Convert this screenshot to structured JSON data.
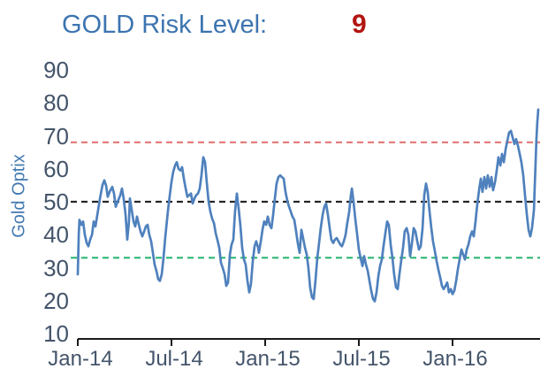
{
  "header": {
    "title": "GOLD Risk Level:",
    "value": "9"
  },
  "colors": {
    "title_blue": "#3c74b0",
    "value_red": "#b21511",
    "series_blue": "#4f81bd",
    "upper_threshold": "#e57e7e",
    "midline": "#262626",
    "lower_threshold": "#2db673",
    "axis": "#1a1a1a",
    "tick_text": "#44546a"
  },
  "chart_data": {
    "type": "line",
    "title": "GOLD Risk Level: 9",
    "xlabel": "",
    "ylabel": "Gold Optix",
    "x_unit": "months since Jan-2014 (0 = Jan-14)",
    "ylim": [
      10,
      90
    ],
    "xlim_months": [
      0,
      29.6
    ],
    "grid": false,
    "legend": "none",
    "yticks": [
      90,
      80,
      70,
      60,
      50,
      40,
      30,
      20,
      10
    ],
    "xticks": [
      {
        "m": 0,
        "label": "Jan-14"
      },
      {
        "m": 6,
        "label": "Jul-14"
      },
      {
        "m": 12,
        "label": "Jan-15"
      },
      {
        "m": 18,
        "label": "Jul-15"
      },
      {
        "m": 24,
        "label": "Jan-16"
      }
    ],
    "reference_lines": [
      {
        "name": "upper-threshold-line",
        "value": 68,
        "color": "#e57e7e",
        "style": "dashed"
      },
      {
        "name": "midline",
        "value": 50,
        "color": "#262626",
        "style": "dashed"
      },
      {
        "name": "lower-threshold-line",
        "value": 33,
        "color": "#2db673",
        "style": "dashed"
      }
    ],
    "series": [
      {
        "name": "Gold Optix",
        "color": "#4f81bd",
        "points": [
          [
            0,
            28
          ],
          [
            0.06,
            40
          ],
          [
            0.11,
            44.5
          ],
          [
            0.23,
            43
          ],
          [
            0.34,
            44
          ],
          [
            0.45,
            40
          ],
          [
            0.57,
            37.5
          ],
          [
            0.68,
            36.5
          ],
          [
            0.79,
            38.5
          ],
          [
            0.91,
            40
          ],
          [
            1.02,
            44
          ],
          [
            1.13,
            42.5
          ],
          [
            1.25,
            46
          ],
          [
            1.42,
            51
          ],
          [
            1.58,
            55
          ],
          [
            1.7,
            56.5
          ],
          [
            1.81,
            55
          ],
          [
            1.92,
            51.5
          ],
          [
            2.04,
            53
          ],
          [
            2.21,
            54.5
          ],
          [
            2.32,
            52.5
          ],
          [
            2.43,
            48.5
          ],
          [
            2.55,
            50
          ],
          [
            2.72,
            52
          ],
          [
            2.83,
            54
          ],
          [
            2.94,
            51
          ],
          [
            3.06,
            46
          ],
          [
            3.17,
            38.5
          ],
          [
            3.28,
            44
          ],
          [
            3.34,
            51
          ],
          [
            3.45,
            47.5
          ],
          [
            3.57,
            44
          ],
          [
            3.68,
            42.5
          ],
          [
            3.79,
            45.5
          ],
          [
            3.91,
            43
          ],
          [
            4.02,
            41
          ],
          [
            4.13,
            39.5
          ],
          [
            4.25,
            41
          ],
          [
            4.36,
            42.5
          ],
          [
            4.47,
            43
          ],
          [
            4.58,
            40
          ],
          [
            4.7,
            38
          ],
          [
            4.81,
            34.5
          ],
          [
            4.92,
            31
          ],
          [
            5.04,
            29
          ],
          [
            5.15,
            26.5
          ],
          [
            5.26,
            26
          ],
          [
            5.38,
            28
          ],
          [
            5.49,
            33
          ],
          [
            5.6,
            39
          ],
          [
            5.77,
            47
          ],
          [
            5.89,
            52
          ],
          [
            6,
            56
          ],
          [
            6.11,
            59
          ],
          [
            6.23,
            61
          ],
          [
            6.34,
            62
          ],
          [
            6.45,
            60
          ],
          [
            6.57,
            59.5
          ],
          [
            6.68,
            60.5
          ],
          [
            6.79,
            57
          ],
          [
            6.91,
            54
          ],
          [
            7.02,
            51.5
          ],
          [
            7.13,
            52
          ],
          [
            7.25,
            52.5
          ],
          [
            7.36,
            49.5
          ],
          [
            7.47,
            51
          ],
          [
            7.58,
            52
          ],
          [
            7.7,
            52.5
          ],
          [
            7.81,
            54
          ],
          [
            7.92,
            58
          ],
          [
            8.04,
            63.5
          ],
          [
            8.15,
            62
          ],
          [
            8.26,
            56
          ],
          [
            8.38,
            50
          ],
          [
            8.49,
            47
          ],
          [
            8.6,
            45
          ],
          [
            8.72,
            43.5
          ],
          [
            8.83,
            40.5
          ],
          [
            8.94,
            38.5
          ],
          [
            9.06,
            36
          ],
          [
            9.17,
            31.5
          ],
          [
            9.28,
            30
          ],
          [
            9.4,
            28
          ],
          [
            9.51,
            24.5
          ],
          [
            9.62,
            25.5
          ],
          [
            9.74,
            34
          ],
          [
            9.85,
            37
          ],
          [
            9.96,
            38.5
          ],
          [
            10.07,
            47
          ],
          [
            10.19,
            52.5
          ],
          [
            10.3,
            48
          ],
          [
            10.41,
            43
          ],
          [
            10.53,
            36
          ],
          [
            10.64,
            32.5
          ],
          [
            10.75,
            31
          ],
          [
            10.87,
            26
          ],
          [
            10.98,
            22.5
          ],
          [
            11.09,
            25
          ],
          [
            11.21,
            32
          ],
          [
            11.32,
            36.5
          ],
          [
            11.43,
            38
          ],
          [
            11.55,
            36
          ],
          [
            11.6,
            34.5
          ],
          [
            11.72,
            38
          ],
          [
            11.83,
            41.5
          ],
          [
            11.94,
            44
          ],
          [
            12.06,
            43
          ],
          [
            12.17,
            45.5
          ],
          [
            12.28,
            43
          ],
          [
            12.4,
            42
          ],
          [
            12.51,
            46
          ],
          [
            12.62,
            51
          ],
          [
            12.73,
            55.5
          ],
          [
            12.85,
            57.5
          ],
          [
            12.96,
            58
          ],
          [
            13.07,
            57.5
          ],
          [
            13.19,
            57
          ],
          [
            13.3,
            53
          ],
          [
            13.41,
            50.5
          ],
          [
            13.53,
            48.5
          ],
          [
            13.64,
            47
          ],
          [
            13.75,
            45.5
          ],
          [
            13.87,
            44.5
          ],
          [
            13.98,
            41
          ],
          [
            14.09,
            37.5
          ],
          [
            14.21,
            34.5
          ],
          [
            14.32,
            41.5
          ],
          [
            14.43,
            39
          ],
          [
            14.55,
            36
          ],
          [
            14.66,
            34
          ],
          [
            14.77,
            30
          ],
          [
            14.88,
            24
          ],
          [
            15,
            21
          ],
          [
            15.11,
            20.5
          ],
          [
            15.22,
            26
          ],
          [
            15.34,
            33
          ],
          [
            15.45,
            37.5
          ],
          [
            15.56,
            42
          ],
          [
            15.68,
            46
          ],
          [
            15.79,
            48.5
          ],
          [
            15.9,
            49.5
          ],
          [
            16.02,
            46
          ],
          [
            16.13,
            42
          ],
          [
            16.24,
            38.5
          ],
          [
            16.36,
            37.5
          ],
          [
            16.47,
            38.5
          ],
          [
            16.58,
            39
          ],
          [
            16.7,
            38
          ],
          [
            16.81,
            37
          ],
          [
            16.92,
            36.5
          ],
          [
            17.04,
            38
          ],
          [
            17.15,
            40
          ],
          [
            17.26,
            43.5
          ],
          [
            17.38,
            47
          ],
          [
            17.49,
            52
          ],
          [
            17.55,
            54
          ],
          [
            17.66,
            50
          ],
          [
            17.77,
            45
          ],
          [
            17.89,
            40
          ],
          [
            18,
            35.5
          ],
          [
            18.11,
            33
          ],
          [
            18.23,
            30.5
          ],
          [
            18.34,
            33.5
          ],
          [
            18.45,
            31
          ],
          [
            18.57,
            29
          ],
          [
            18.68,
            26
          ],
          [
            18.79,
            23
          ],
          [
            18.91,
            20.5
          ],
          [
            19.02,
            19.8
          ],
          [
            19.13,
            22.5
          ],
          [
            19.25,
            27.5
          ],
          [
            19.36,
            30.5
          ],
          [
            19.47,
            32.5
          ],
          [
            19.58,
            36.5
          ],
          [
            19.7,
            40.5
          ],
          [
            19.81,
            44
          ],
          [
            19.92,
            43
          ],
          [
            20.04,
            37
          ],
          [
            20.15,
            33
          ],
          [
            20.26,
            28
          ],
          [
            20.38,
            24
          ],
          [
            20.49,
            23.5
          ],
          [
            20.6,
            28
          ],
          [
            20.72,
            32.5
          ],
          [
            20.83,
            36
          ],
          [
            20.94,
            41
          ],
          [
            21.06,
            42
          ],
          [
            21.17,
            40
          ],
          [
            21.28,
            33.5
          ],
          [
            21.4,
            37.5
          ],
          [
            21.51,
            42
          ],
          [
            21.62,
            41
          ],
          [
            21.74,
            38
          ],
          [
            21.85,
            35.5
          ],
          [
            21.96,
            36.5
          ],
          [
            22.08,
            42
          ],
          [
            22.19,
            52
          ],
          [
            22.3,
            55.5
          ],
          [
            22.41,
            53
          ],
          [
            22.53,
            47
          ],
          [
            22.64,
            42
          ],
          [
            22.75,
            38
          ],
          [
            22.87,
            35
          ],
          [
            22.98,
            32
          ],
          [
            23.09,
            29.5
          ],
          [
            23.21,
            27
          ],
          [
            23.32,
            24.5
          ],
          [
            23.43,
            23.5
          ],
          [
            23.55,
            24.5
          ],
          [
            23.66,
            25.5
          ],
          [
            23.77,
            22.5
          ],
          [
            23.89,
            23.5
          ],
          [
            24,
            22
          ],
          [
            24.11,
            23
          ],
          [
            24.23,
            26
          ],
          [
            24.34,
            29.5
          ],
          [
            24.45,
            32.5
          ],
          [
            24.57,
            35.5
          ],
          [
            24.68,
            34
          ],
          [
            24.79,
            32.5
          ],
          [
            24.91,
            35.5
          ],
          [
            25.02,
            37
          ],
          [
            25.13,
            39.5
          ],
          [
            25.25,
            41
          ],
          [
            25.36,
            39.5
          ],
          [
            25.47,
            44
          ],
          [
            25.58,
            49
          ],
          [
            25.7,
            53.5
          ],
          [
            25.81,
            57
          ],
          [
            25.92,
            53
          ],
          [
            26.04,
            57.5
          ],
          [
            26.15,
            54
          ],
          [
            26.26,
            58
          ],
          [
            26.38,
            54.5
          ],
          [
            26.49,
            57.5
          ],
          [
            26.6,
            53.5
          ],
          [
            26.72,
            56
          ],
          [
            26.83,
            59.5
          ],
          [
            26.94,
            63.5
          ],
          [
            27.06,
            61
          ],
          [
            27.17,
            64.5
          ],
          [
            27.28,
            62
          ],
          [
            27.4,
            66
          ],
          [
            27.51,
            68.5
          ],
          [
            27.62,
            71
          ],
          [
            27.74,
            71.5
          ],
          [
            27.85,
            69.5
          ],
          [
            27.96,
            67.5
          ],
          [
            28.07,
            69
          ],
          [
            28.19,
            67
          ],
          [
            28.3,
            64.5
          ],
          [
            28.41,
            62
          ],
          [
            28.53,
            58
          ],
          [
            28.64,
            52
          ],
          [
            28.75,
            46.5
          ],
          [
            28.87,
            41.5
          ],
          [
            28.98,
            39.5
          ],
          [
            29.09,
            42
          ],
          [
            29.21,
            47.5
          ],
          [
            29.26,
            54
          ],
          [
            29.32,
            62
          ],
          [
            29.37,
            69
          ],
          [
            29.43,
            74
          ],
          [
            29.49,
            78
          ]
        ]
      }
    ]
  }
}
